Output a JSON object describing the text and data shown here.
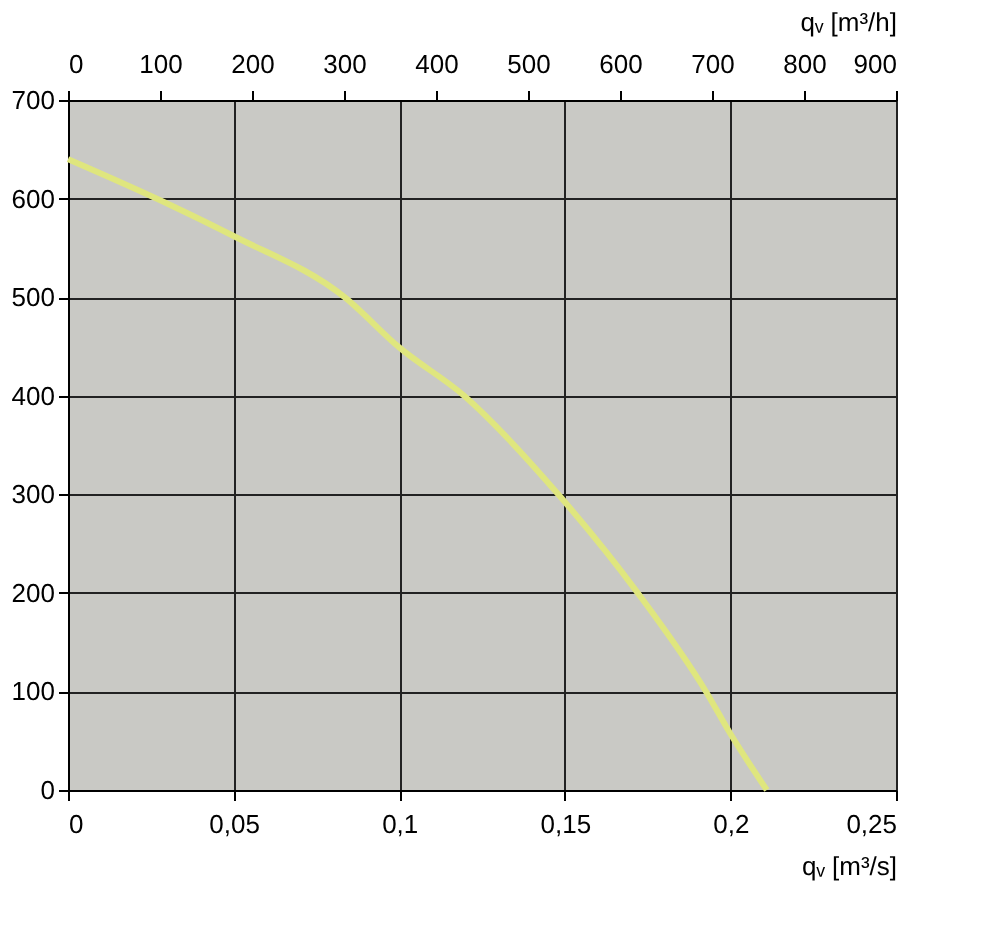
{
  "chart_data": {
    "type": "line",
    "xlabel": "qᵥ [m³/s]",
    "x2label": "qᵥ [m³/h]",
    "x": [
      0,
      0.0312,
      0.05,
      0.0835,
      0.1,
      0.1196,
      0.148,
      0.172,
      0.1926,
      0.2,
      0.211
    ],
    "series": [
      {
        "color": "#dfe67e",
        "values": [
          640,
          593,
          562,
          500,
          449,
          400,
          300,
          200,
          100,
          57,
          0
        ]
      }
    ],
    "xlim": [
      0,
      0.25
    ],
    "xticks": [
      0,
      {
        "value": 0.05,
        "label": "0,05"
      },
      {
        "value": 0.1,
        "label": "0,1"
      },
      {
        "value": 0.15,
        "label": "0,15"
      },
      {
        "value": 0.2,
        "label": "0,2"
      },
      {
        "value": 0.25,
        "label": "0,25"
      }
    ],
    "x2lim": [
      0,
      900
    ],
    "x2ticks": [
      0,
      100,
      200,
      300,
      400,
      500,
      600,
      700,
      800,
      900
    ],
    "ylim": [
      0,
      700
    ],
    "yticks": [
      0,
      100,
      200,
      300,
      400,
      500,
      600,
      700
    ],
    "grid": true,
    "marker": "none",
    "line_style": "solid"
  }
}
